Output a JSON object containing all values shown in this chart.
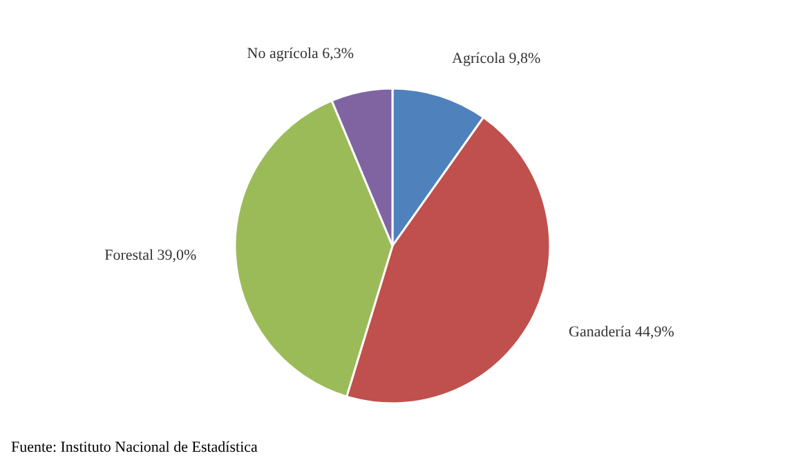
{
  "chart_data": {
    "type": "pie",
    "categories": [
      "Agrícola",
      "Ganadería",
      "Forestal",
      "No agrícola"
    ],
    "values": [
      9.8,
      44.9,
      39.0,
      6.3
    ],
    "value_labels": [
      "9,8%",
      "44,9%",
      "39,0%",
      "6,3%"
    ],
    "colors": [
      "#4f81bd",
      "#c0504d",
      "#9bbb59",
      "#8064a2"
    ],
    "annotations": [
      "Fuente: Instituto Nacional de Estadística"
    ]
  }
}
